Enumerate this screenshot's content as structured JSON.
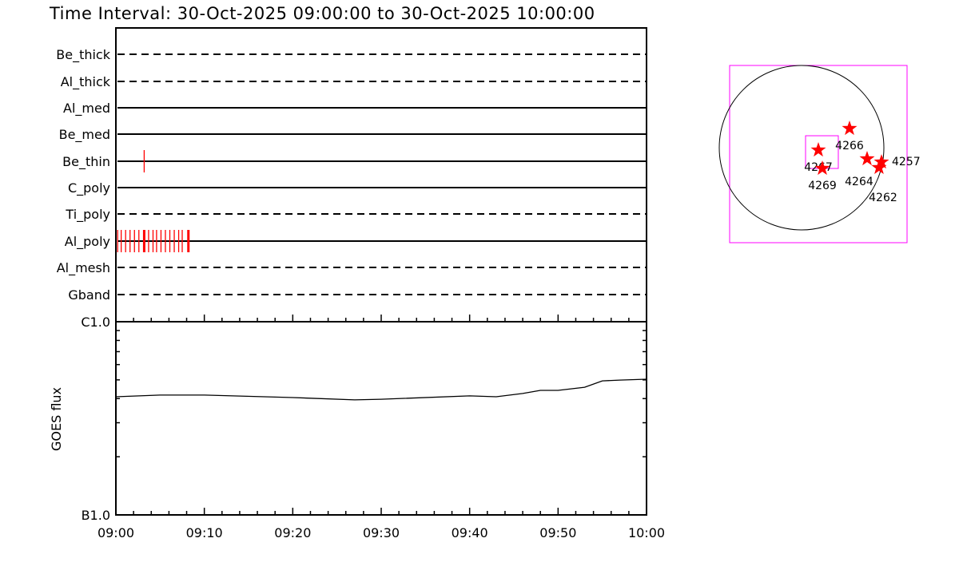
{
  "chart_data": [
    {
      "type": "timeline",
      "title": "Time Interval: 30-Oct-2025 09:00:00 to 30-Oct-2025 10:00:00",
      "x_ticks": [
        "09:00",
        "09:10",
        "09:20",
        "09:30",
        "09:40",
        "09:50",
        "10:00"
      ],
      "xlim_minutes_after_0900": [
        0,
        60
      ],
      "rows": [
        {
          "name": "Be_thick",
          "style": "dashed",
          "events": []
        },
        {
          "name": "Al_thick",
          "style": "dashed",
          "events": []
        },
        {
          "name": "Al_med",
          "style": "solid",
          "events": []
        },
        {
          "name": "Be_med",
          "style": "solid",
          "events": []
        },
        {
          "name": "Be_thin",
          "style": "solid",
          "events": [
            3.2
          ]
        },
        {
          "name": "C_poly",
          "style": "solid",
          "events": []
        },
        {
          "name": "Ti_poly",
          "style": "dashed",
          "events": []
        },
        {
          "name": "Al_poly",
          "style": "solid",
          "events": [
            0.2,
            0.6,
            1.1,
            1.6,
            2.1,
            2.6,
            3.2,
            3.7,
            4.2,
            4.6,
            5.1,
            5.6,
            6.1,
            6.6,
            7.1,
            7.5,
            8.2
          ]
        },
        {
          "name": "Al_mesh",
          "style": "dashed",
          "events": []
        },
        {
          "name": "Gband",
          "style": "dashed",
          "events": []
        }
      ],
      "event_color": "#ff0000"
    },
    {
      "type": "line",
      "ylabel": "GOES flux",
      "y_scale": "log",
      "ylim": [
        1e-07,
        1e-06
      ],
      "y_tick_labels": [
        "B1.0",
        "C1.0"
      ],
      "x_ticks": [
        "09:00",
        "09:10",
        "09:20",
        "09:30",
        "09:40",
        "09:50",
        "10:00"
      ],
      "x_minutes": [
        0,
        5,
        10,
        20,
        27,
        30,
        40,
        43,
        46,
        48,
        50,
        53,
        55,
        57,
        60
      ],
      "values": [
        4.09e-07,
        4.17e-07,
        4.17e-07,
        4.05e-07,
        3.94e-07,
        3.97e-07,
        4.13e-07,
        4.09e-07,
        4.25e-07,
        4.41e-07,
        4.41e-07,
        4.58e-07,
        4.94e-07,
        4.99e-07,
        5.04e-07
      ]
    },
    {
      "type": "scatter",
      "description_units": "arcsec",
      "solar_radius": 970,
      "disk_color": "#000000",
      "frame_color": "#ff00ff",
      "star_color": "#ff0000",
      "fov": {
        "center": [
          240,
          -52
        ],
        "size": 386
      },
      "regions": [
        {
          "label": "4266",
          "x": 565,
          "y": 226
        },
        {
          "label": "4267",
          "x": 198,
          "y": -28
        },
        {
          "label": "4269",
          "x": 245,
          "y": -245
        },
        {
          "label": "4264",
          "x": 772,
          "y": -132
        },
        {
          "label": "4257",
          "x": 942,
          "y": -170
        },
        {
          "label": "4262",
          "x": 913,
          "y": -235
        }
      ]
    }
  ]
}
